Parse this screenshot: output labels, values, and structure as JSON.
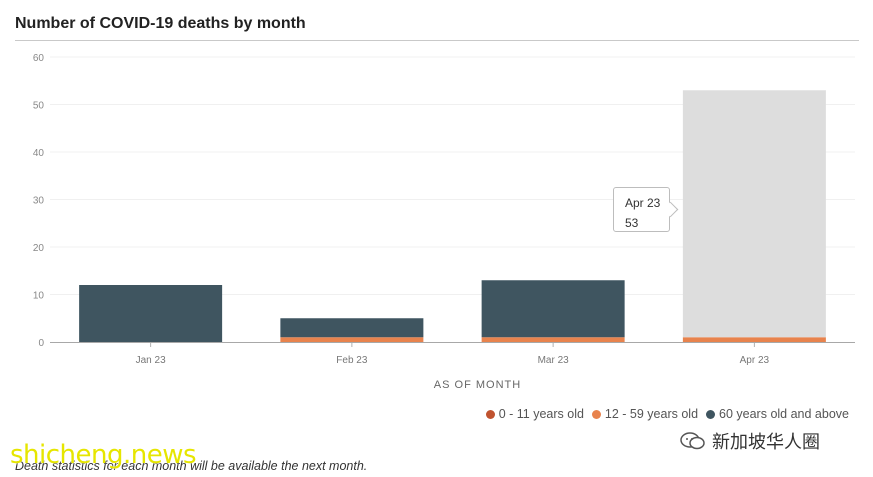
{
  "header": {
    "title": "Number of COVID-19 deaths by month"
  },
  "chart_data": {
    "type": "bar",
    "stacked": true,
    "title": "Number of COVID-19 deaths by month",
    "xlabel": "AS OF MONTH",
    "ylabel": "",
    "categories": [
      "Jan 23",
      "Feb 23",
      "Mar 23",
      "Apr 23"
    ],
    "ylim": [
      0,
      60
    ],
    "yticks": [
      0,
      10,
      20,
      30,
      40,
      50,
      60
    ],
    "grid": true,
    "legend_position": "bottom-right",
    "series": [
      {
        "name": "0 - 11 years old",
        "color": "#c0532f",
        "values": [
          0,
          0,
          0,
          0
        ]
      },
      {
        "name": "12 - 59 years old",
        "color": "#e8834d",
        "values": [
          0,
          1,
          1,
          1
        ]
      },
      {
        "name": "60 years old and above",
        "color": "#3f5560",
        "values": [
          12,
          4,
          12,
          52
        ]
      }
    ],
    "highlighted_category": "Apr 23",
    "highlight_color": "#dddddd"
  },
  "tooltip": {
    "label": "Apr 23",
    "value": "53"
  },
  "footnote": "Death statistics for each month will be available the next month.",
  "watermarks": {
    "left": "shicheng.news",
    "right": "新加坡华人圈"
  },
  "icons": {
    "legend_marker": "circle-swatch",
    "watermark": "wechat-icon"
  }
}
